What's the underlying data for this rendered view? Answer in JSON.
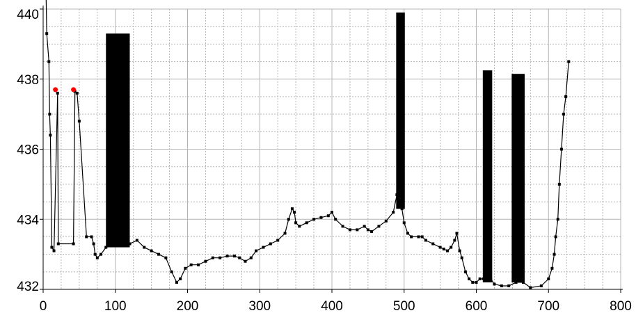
{
  "chart_data": {
    "type": "line",
    "title": "",
    "xlabel": "",
    "ylabel": "",
    "xlim": [
      0,
      800
    ],
    "ylim": [
      432,
      440
    ],
    "x_ticks": [
      0,
      100,
      200,
      300,
      400,
      500,
      600,
      700,
      800
    ],
    "y_ticks": [
      432,
      434,
      436,
      438,
      440
    ],
    "grid": true,
    "colors": {
      "line": "#000000",
      "marker": "#000000",
      "highlight": "#ff0000",
      "grid": "#b4b4b4",
      "bar": "#000000"
    },
    "series": [
      {
        "points": [
          [
            4,
            440.4
          ],
          [
            5,
            439.3
          ],
          [
            8,
            438.5
          ],
          [
            9,
            437.0
          ],
          [
            10,
            436.4
          ],
          [
            12,
            433.2
          ],
          [
            15,
            433.1
          ],
          [
            20,
            437.6
          ],
          [
            21,
            433.3
          ],
          [
            42,
            433.3
          ],
          [
            44,
            437.65
          ],
          [
            47,
            437.6
          ],
          [
            50,
            436.8
          ],
          [
            60,
            433.5
          ],
          [
            67,
            433.5
          ],
          [
            70,
            433.3
          ],
          [
            72,
            433.0
          ],
          [
            75,
            432.9
          ],
          [
            80,
            433.0
          ],
          [
            87,
            433.2
          ],
          [
            95,
            433.3
          ],
          [
            110,
            433.3
          ],
          [
            120,
            433.3
          ],
          [
            130,
            433.4
          ],
          [
            140,
            433.2
          ],
          [
            150,
            433.1
          ],
          [
            160,
            433.0
          ],
          [
            170,
            432.9
          ],
          [
            178,
            432.5
          ],
          [
            185,
            432.2
          ],
          [
            190,
            432.3
          ],
          [
            197,
            432.6
          ],
          [
            205,
            432.7
          ],
          [
            215,
            432.7
          ],
          [
            225,
            432.8
          ],
          [
            235,
            432.9
          ],
          [
            245,
            432.9
          ],
          [
            255,
            432.95
          ],
          [
            265,
            432.95
          ],
          [
            272,
            432.9
          ],
          [
            280,
            432.8
          ],
          [
            288,
            432.9
          ],
          [
            295,
            433.1
          ],
          [
            305,
            433.2
          ],
          [
            315,
            433.3
          ],
          [
            325,
            433.4
          ],
          [
            335,
            433.6
          ],
          [
            340,
            434.0
          ],
          [
            345,
            434.3
          ],
          [
            348,
            434.2
          ],
          [
            350,
            433.9
          ],
          [
            355,
            433.8
          ],
          [
            365,
            433.9
          ],
          [
            375,
            434.0
          ],
          [
            385,
            434.05
          ],
          [
            395,
            434.1
          ],
          [
            400,
            434.2
          ],
          [
            405,
            434.0
          ],
          [
            415,
            433.8
          ],
          [
            425,
            433.7
          ],
          [
            435,
            433.7
          ],
          [
            445,
            433.8
          ],
          [
            450,
            433.7
          ],
          [
            455,
            433.65
          ],
          [
            465,
            433.8
          ],
          [
            475,
            433.95
          ],
          [
            485,
            434.2
          ],
          [
            490,
            434.7
          ],
          [
            493,
            435.0
          ],
          [
            495,
            434.7
          ],
          [
            497,
            434.3
          ],
          [
            500,
            433.9
          ],
          [
            505,
            433.6
          ],
          [
            510,
            433.5
          ],
          [
            520,
            433.5
          ],
          [
            525,
            433.5
          ],
          [
            530,
            433.4
          ],
          [
            540,
            433.3
          ],
          [
            550,
            433.2
          ],
          [
            555,
            433.15
          ],
          [
            560,
            433.1
          ],
          [
            565,
            433.2
          ],
          [
            570,
            433.4
          ],
          [
            573,
            433.6
          ],
          [
            577,
            433.1
          ],
          [
            580,
            432.9
          ],
          [
            585,
            432.5
          ],
          [
            590,
            432.3
          ],
          [
            595,
            432.2
          ],
          [
            600,
            432.2
          ],
          [
            605,
            432.3
          ],
          [
            610,
            432.3
          ],
          [
            615,
            432.3
          ],
          [
            620,
            432.3
          ],
          [
            625,
            432.15
          ],
          [
            635,
            432.1
          ],
          [
            645,
            432.1
          ],
          [
            655,
            432.2
          ],
          [
            665,
            432.2
          ],
          [
            675,
            432.05
          ],
          [
            690,
            432.1
          ],
          [
            700,
            432.3
          ],
          [
            705,
            432.6
          ],
          [
            708,
            433.0
          ],
          [
            710,
            433.5
          ],
          [
            713,
            434.0
          ],
          [
            715,
            435.0
          ],
          [
            718,
            436.0
          ],
          [
            721,
            437.0
          ],
          [
            724,
            437.5
          ],
          [
            728,
            438.5
          ]
        ]
      }
    ],
    "highlight_points": [
      [
        17,
        437.7
      ],
      [
        42,
        437.7
      ]
    ],
    "bars": [
      {
        "x_start": 87,
        "x_end": 120,
        "y_bottom": 433.2,
        "y_top": 439.3
      },
      {
        "x_start": 489,
        "x_end": 501,
        "y_bottom": 434.3,
        "y_top": 439.9
      },
      {
        "x_start": 609,
        "x_end": 622,
        "y_bottom": 432.2,
        "y_top": 438.25
      },
      {
        "x_start": 649,
        "x_end": 667,
        "y_bottom": 432.2,
        "y_top": 438.15
      }
    ]
  }
}
